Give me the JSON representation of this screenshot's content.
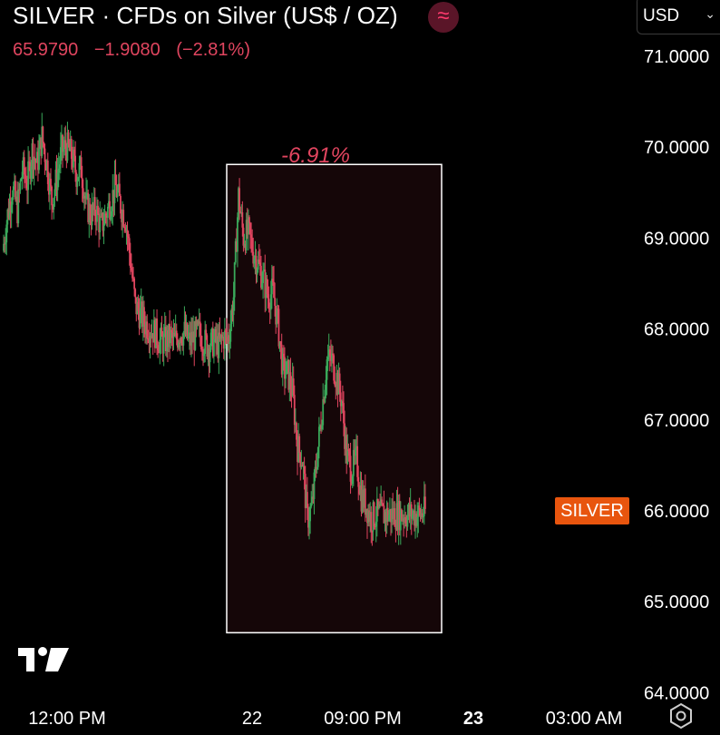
{
  "header": {
    "title": "SILVER · CFDs on Silver (US$ / OZ)",
    "badge_icon": "wave-icon",
    "last_price": "65.9790",
    "change": "−1.9080",
    "change_pct": "(−2.81%)",
    "currency": "USD"
  },
  "colors": {
    "background": "#000000",
    "up": "#3aa85a",
    "down": "#e0455f",
    "measure_box_fill": "#150608",
    "price_tag": "#e8550e"
  },
  "price_tag": "SILVER",
  "measure_label": "-6.91%",
  "footer": {
    "logo_icon": "tradingview-logo",
    "settings_icon": "gear-icon"
  },
  "chart_data": {
    "type": "candlestick",
    "y_axis": {
      "ticks": [
        "71.0000",
        "70.0000",
        "69.0000",
        "68.0000",
        "67.0000",
        "66.0000",
        "65.0000",
        "64.0000"
      ],
      "tick_values": [
        71,
        70,
        69,
        68,
        67,
        66,
        65,
        64
      ],
      "range": [
        63.95,
        71.6
      ]
    },
    "x_axis": {
      "ticks": [
        {
          "label": "12:00 PM",
          "bold": false,
          "index": 7
        },
        {
          "label": "22",
          "bold": false,
          "index": 32
        },
        {
          "label": "09:00 PM",
          "bold": false,
          "index": 46
        },
        {
          "label": "23",
          "bold": true,
          "index": 60
        },
        {
          "label": "03:00 AM",
          "bold": false,
          "index": 74
        }
      ],
      "bars_visible": 87
    },
    "series_close": [
      68.85,
      69.25,
      69.55,
      69.3,
      69.75,
      69.6,
      69.95,
      69.8,
      70.1,
      69.8,
      69.4,
      69.65,
      69.95,
      70.0,
      69.9,
      69.7,
      69.75,
      69.35,
      69.25,
      69.3,
      69.1,
      69.25,
      69.4,
      69.55,
      69.35,
      69.2,
      68.75,
      68.25,
      68.15,
      68.05,
      68.0,
      67.95,
      67.85,
      67.85,
      67.9,
      67.85,
      67.95,
      67.95,
      67.85,
      67.9,
      67.95,
      67.85,
      67.8,
      67.85,
      67.8,
      67.9,
      67.9,
      68.35,
      69.45,
      69.0,
      69.05,
      68.85,
      68.7,
      68.55,
      68.35,
      68.4,
      68.05,
      67.55,
      67.5,
      67.3,
      66.7,
      66.55,
      65.9,
      66.05,
      66.6,
      67.1,
      67.65,
      67.65,
      67.45,
      67.2,
      66.6,
      66.45,
      66.55,
      66.15,
      66.05,
      65.9,
      65.95,
      65.95,
      65.95,
      65.95,
      65.95,
      65.95,
      65.95,
      65.95,
      65.95,
      65.95,
      65.98
    ],
    "measure": {
      "from_index": 47,
      "to_index": 82,
      "high": 69.55,
      "low": 64.65,
      "label": "-6.91%"
    }
  }
}
